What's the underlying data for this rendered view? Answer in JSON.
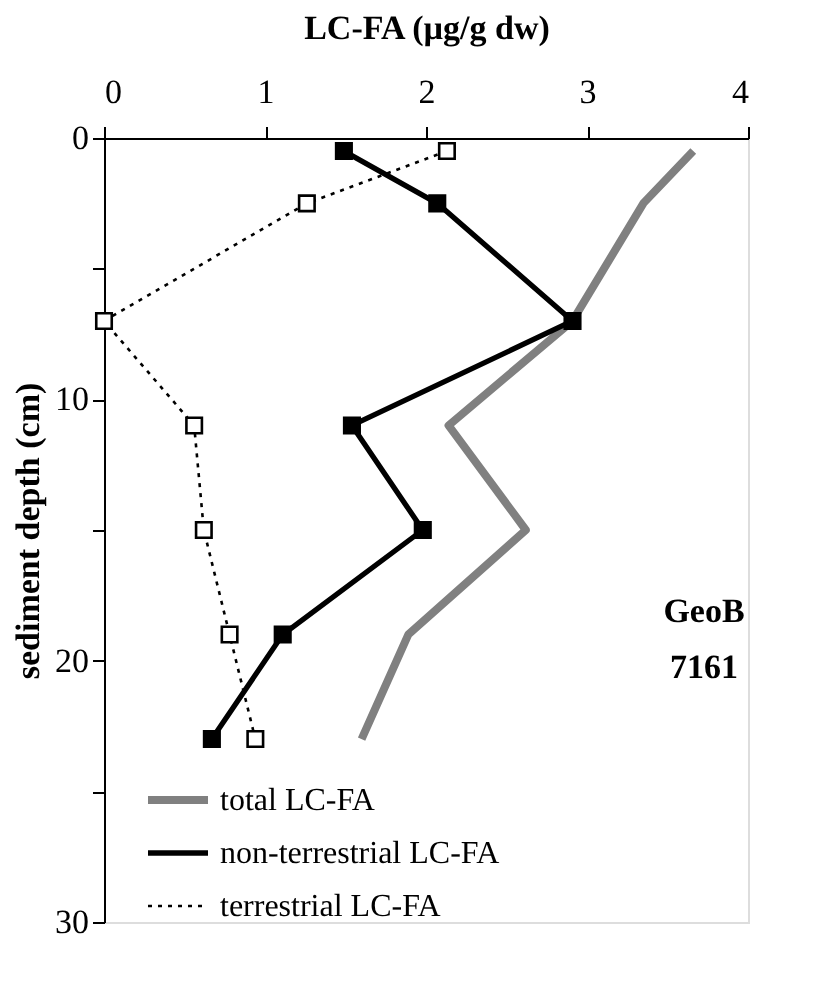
{
  "chart_data": {
    "type": "line",
    "xlabel": "LC-FA (µg/g dw)",
    "ylabel": "sediment depth (cm)",
    "x": [
      0.5,
      2.5,
      7,
      11,
      15,
      19,
      23
    ],
    "series": [
      {
        "name": "total LC-FA",
        "color": "#808080",
        "marker": "none",
        "line_style": "solid",
        "values": [
          3.66,
          3.35,
          2.91,
          2.14,
          2.62,
          1.89,
          1.6
        ]
      },
      {
        "name": "non-terrestrial LC-FA",
        "color": "#000000",
        "marker": "square",
        "line_style": "solid",
        "values": [
          1.49,
          2.07,
          2.91,
          1.54,
          1.98,
          1.11,
          0.67
        ]
      },
      {
        "name": "terrestrial LC-FA",
        "color": "#000000",
        "marker": "square",
        "line_style": "dotted",
        "values": [
          2.13,
          1.26,
          0,
          0.56,
          0.62,
          0.78,
          0.94
        ]
      }
    ],
    "orientation": "horizontal",
    "xlim": [
      0,
      4
    ],
    "xticks": [
      0,
      1,
      2,
      3,
      4
    ],
    "ylim": [
      30,
      0
    ],
    "yticks": [
      0,
      {
        "value": 5,
        "label": null
      },
      10,
      {
        "value": 15,
        "label": null
      },
      20,
      {
        "value": 25,
        "label": null
      },
      30
    ],
    "grid": false,
    "legend": "bottom",
    "annotations": [
      "GeoB\n7161"
    ]
  }
}
